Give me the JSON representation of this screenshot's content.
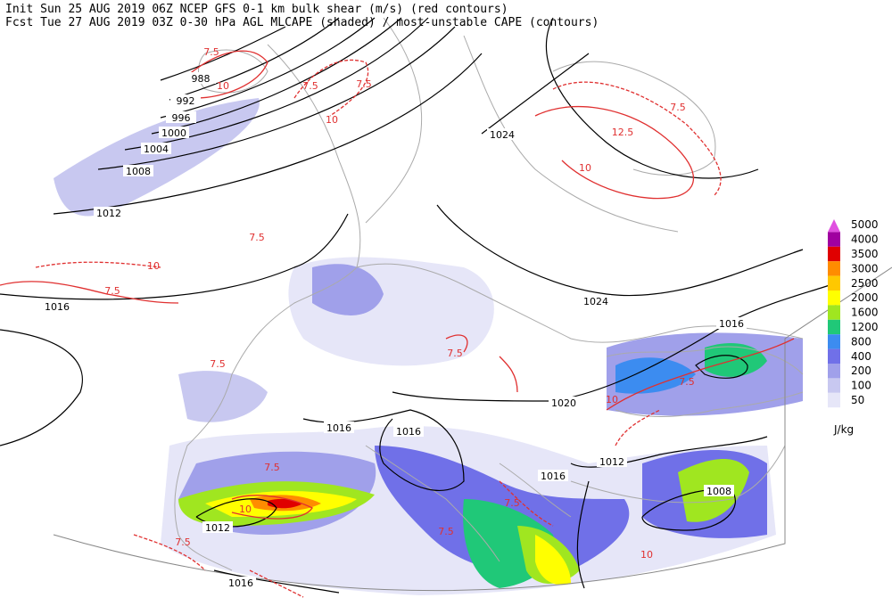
{
  "header": {
    "line1": "Init  Sun 25 AUG 2019 06Z  NCEP GFS 0-1 km bulk shear (m/s) (red contours)",
    "line2": "Fcst Tue 27 AUG 2019 03Z  0-30 hPa AGL MLCAPE (shaded) / most-unstable CAPE (contours)"
  },
  "legend": {
    "unit": "J/kg",
    "levels": [
      {
        "value": 50,
        "color": "#e6e6f8"
      },
      {
        "value": 100,
        "color": "#c8c8f0"
      },
      {
        "value": 200,
        "color": "#a0a0ea"
      },
      {
        "value": 400,
        "color": "#7070e8"
      },
      {
        "value": 800,
        "color": "#3c8cf0"
      },
      {
        "value": 1200,
        "color": "#20c878"
      },
      {
        "value": 1600,
        "color": "#a0e620"
      },
      {
        "value": 2000,
        "color": "#ffff00"
      },
      {
        "value": 2500,
        "color": "#ffc800"
      },
      {
        "value": 3000,
        "color": "#ff8c00"
      },
      {
        "value": 3500,
        "color": "#e00000"
      },
      {
        "value": 4000,
        "color": "#a000a0"
      },
      {
        "value": 5000,
        "color": "#e050e0"
      }
    ]
  },
  "isobar_labels": [
    "988",
    "992",
    "996",
    "1000",
    "1004",
    "1008",
    "1012",
    "1016",
    "1024",
    "1024",
    "1016",
    "1020",
    "1016",
    "1016",
    "1016",
    "1012",
    "1008",
    "1012",
    "1016"
  ],
  "shear_labels": [
    "7.5",
    "10",
    "7.5",
    "7.5",
    "10",
    "7.5",
    "12.5",
    "10",
    "7.5",
    "7.5",
    "10",
    "7.5",
    "7.5",
    "10",
    "7.5",
    "10",
    "7.5",
    "7.5",
    "10",
    "7.5",
    "7.5"
  ]
}
